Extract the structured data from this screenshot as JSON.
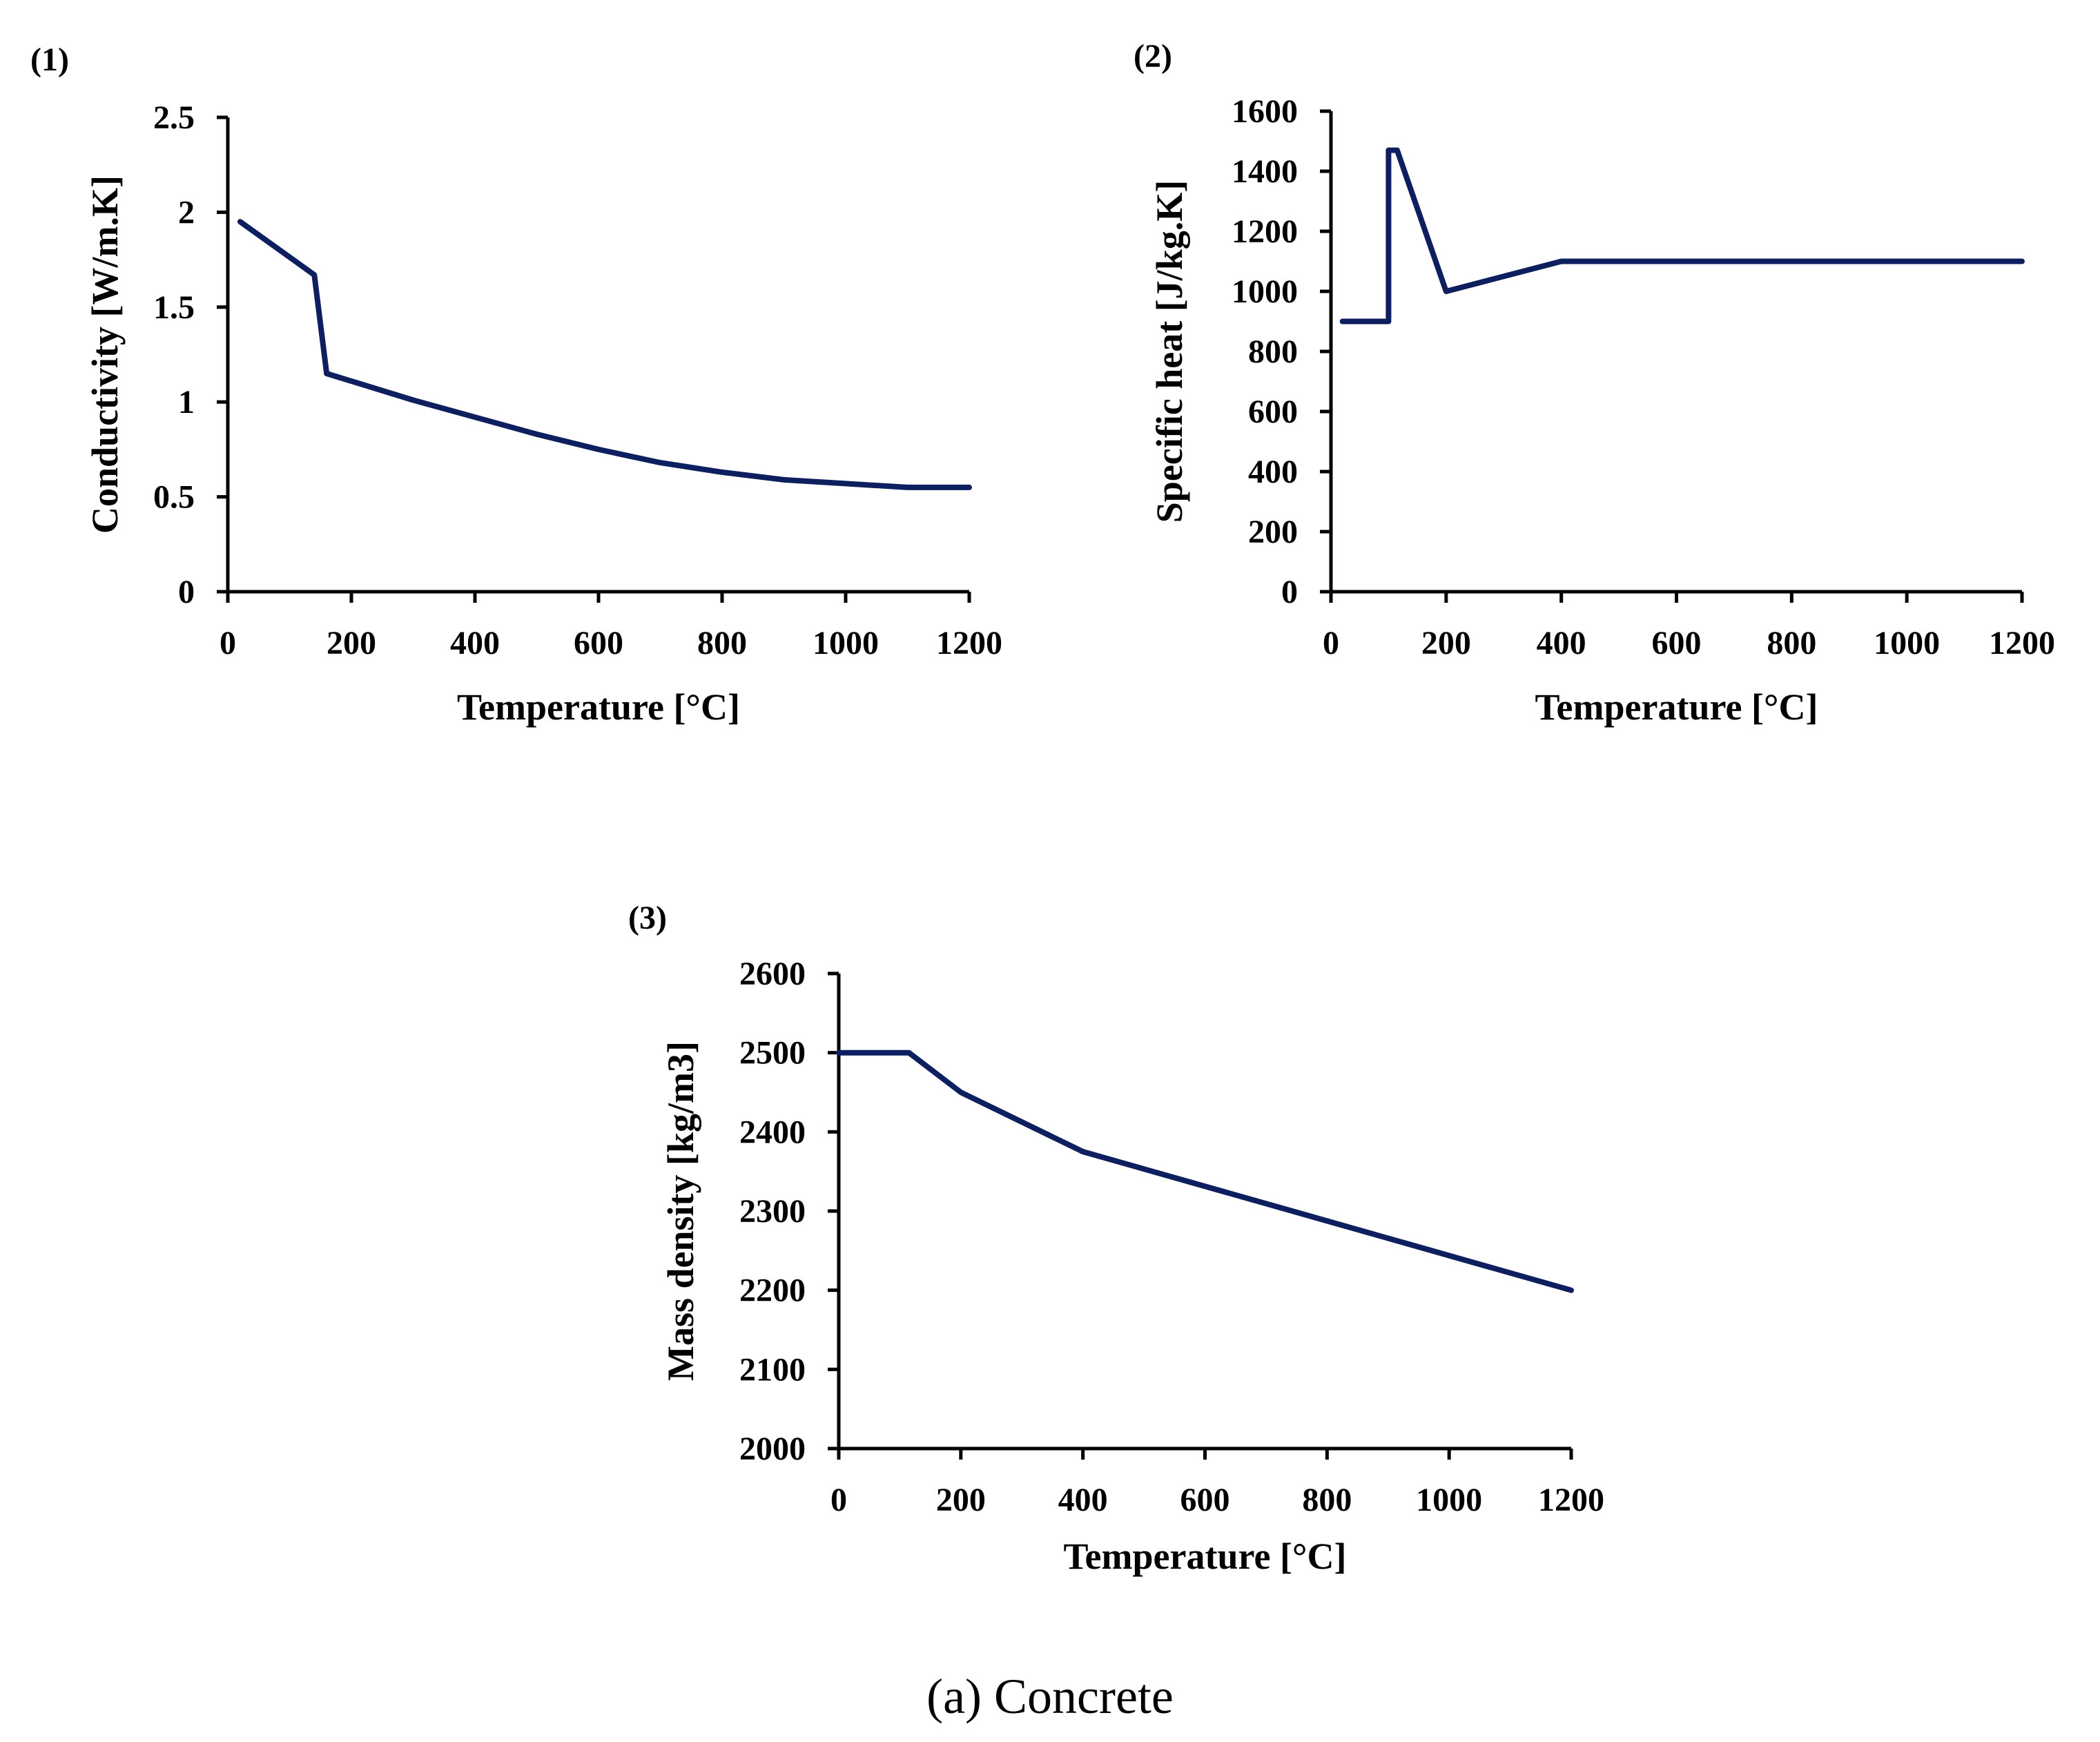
{
  "caption": {
    "prefix": "(a)",
    "text": " Concrete"
  },
  "chart_data": [
    {
      "type": "line",
      "panel_label": "(1)",
      "title": "",
      "xlabel": "Temperature  [°C]",
      "ylabel": "Conductivity  [W/m.K]",
      "xlim": [
        0,
        1200
      ],
      "ylim": [
        0,
        2.5
      ],
      "xticks": [
        "0",
        "200",
        "400",
        "600",
        "800",
        "1000",
        "1200"
      ],
      "yticks": [
        "0",
        "0.5",
        "1",
        "1.5",
        "2",
        "2.5"
      ],
      "grid": false,
      "series": [
        {
          "name": "Conductivity",
          "color": "#0d1f5e",
          "x": [
            20,
            140,
            160,
            200,
            300,
            400,
            500,
            600,
            700,
            800,
            900,
            1000,
            1100,
            1200
          ],
          "y": [
            1.95,
            1.67,
            1.15,
            1.11,
            1.01,
            0.92,
            0.83,
            0.75,
            0.68,
            0.63,
            0.59,
            0.57,
            0.55,
            0.55
          ]
        }
      ]
    },
    {
      "type": "line",
      "panel_label": "(2)",
      "title": "",
      "xlabel": "Temperature  [°C]",
      "ylabel": "Specific heat  [J/kg.K]",
      "xlim": [
        0,
        1200
      ],
      "ylim": [
        0,
        1600
      ],
      "xticks": [
        "0",
        "200",
        "400",
        "600",
        "800",
        "1000",
        "1200"
      ],
      "yticks": [
        "0",
        "200",
        "400",
        "600",
        "800",
        "1000",
        "1200",
        "1400",
        "1600"
      ],
      "grid": false,
      "series": [
        {
          "name": "Specific heat",
          "color": "#0d1f5e",
          "x": [
            20,
            100,
            100,
            115,
            200,
            400,
            1200
          ],
          "y": [
            900,
            900,
            1470,
            1470,
            1000,
            1100,
            1100
          ]
        }
      ]
    },
    {
      "type": "line",
      "panel_label": "(3)",
      "title": "",
      "xlabel": "Temperature  [°C]",
      "ylabel": "Mass density  [kg/m3]",
      "xlim": [
        0,
        1200
      ],
      "ylim": [
        2000,
        2600
      ],
      "xticks": [
        "0",
        "200",
        "400",
        "600",
        "800",
        "1000",
        "1200"
      ],
      "yticks": [
        "2000",
        "2100",
        "2200",
        "2300",
        "2400",
        "2500",
        "2600"
      ],
      "grid": false,
      "series": [
        {
          "name": "Mass density",
          "color": "#0d1f5e",
          "x": [
            0,
            115,
            200,
            400,
            1200
          ],
          "y": [
            2500,
            2500,
            2450,
            2375,
            2200
          ]
        }
      ]
    }
  ]
}
